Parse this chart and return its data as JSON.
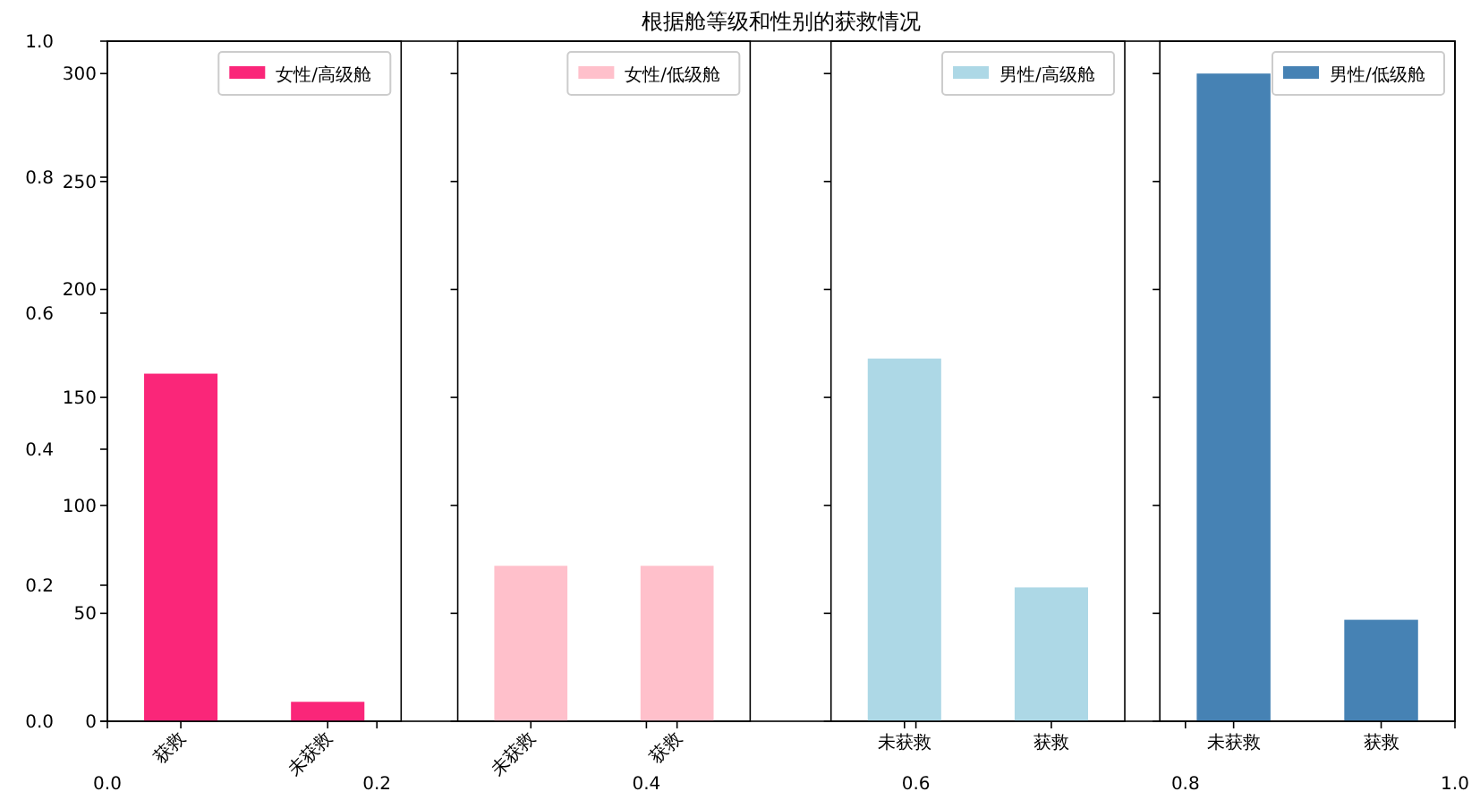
{
  "chart_data": [
    {
      "type": "scatter",
      "title": "根据舱等级和性别的获救情况",
      "xlim": [
        0,
        1
      ],
      "ylim": [
        0,
        1
      ],
      "xticks": [
        {
          "value": 0,
          "label": "0.0"
        },
        {
          "value": 0.2,
          "label": "0.2"
        },
        {
          "value": 0.4,
          "label": "0.4"
        },
        {
          "value": 0.6,
          "label": "0.6"
        },
        {
          "value": 0.8,
          "label": "0.8"
        },
        {
          "value": 1,
          "label": "1.0"
        }
      ],
      "yticks": [
        {
          "value": 0,
          "label": "0.0"
        },
        {
          "value": 0.2,
          "label": "0.2"
        },
        {
          "value": 0.4,
          "label": "0.4"
        },
        {
          "value": 0.6,
          "label": "0.6"
        },
        {
          "value": 0.8,
          "label": "0.8"
        },
        {
          "value": 1,
          "label": "1.0"
        }
      ]
    },
    {
      "type": "bar",
      "categories": [
        "获救",
        "未获救"
      ],
      "series": [
        {
          "name": "女性/高级舱",
          "color": "#fa2679",
          "values": [
            161,
            9
          ]
        }
      ],
      "ylim": [
        0,
        315
      ],
      "yticks": [
        0,
        50,
        100,
        150,
        200,
        250,
        300
      ],
      "legend": "top right"
    },
    {
      "type": "bar",
      "categories": [
        "未获救",
        "获救"
      ],
      "series": [
        {
          "name": "女性/低级舱",
          "color": "#ffc0cb",
          "values": [
            72,
            72
          ]
        }
      ],
      "ylim": [
        0,
        315
      ],
      "yticks": [
        0,
        50,
        100,
        150,
        200,
        250,
        300
      ],
      "legend": "top right",
      "tick_labels": "x"
    },
    {
      "type": "bar",
      "categories": [
        "未获救",
        "获救"
      ],
      "series": [
        {
          "name": "男性/高级舱",
          "color": "#add8e6",
          "values": [
            168,
            62
          ]
        }
      ],
      "ylim": [
        0,
        315
      ],
      "yticks": [
        0,
        50,
        100,
        150,
        200,
        250,
        300
      ],
      "legend": "top right",
      "tick_labels": "x"
    },
    {
      "type": "bar",
      "categories": [
        "未获救",
        "获救"
      ],
      "series": [
        {
          "name": "男性/低级舱",
          "color": "#4682b4",
          "values": [
            300,
            47
          ]
        }
      ],
      "ylim": [
        0,
        315
      ],
      "yticks": [
        0,
        50,
        100,
        150,
        200,
        250,
        300
      ],
      "legend": "top right",
      "tick_labels": "x"
    }
  ]
}
